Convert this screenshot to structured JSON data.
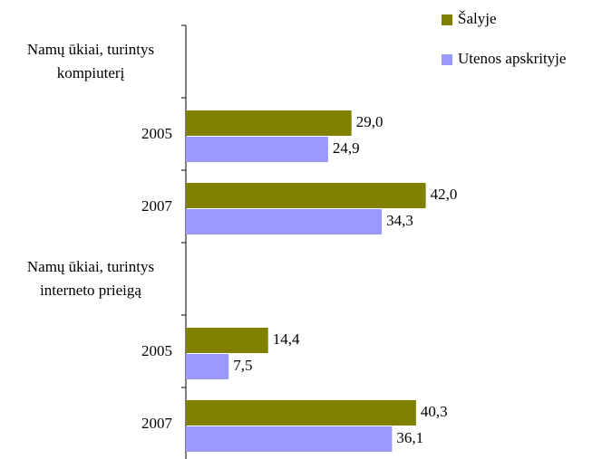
{
  "chart_data": {
    "type": "hbar",
    "categories": [
      "Namų ūkiai, turintys kompiuterį",
      "2005",
      "2007",
      "Namų ūkiai, turintys interneto prieigą",
      "2005",
      "2007"
    ],
    "series": [
      {
        "name": "Šalyje",
        "color": "#808000",
        "values": [
          null,
          29.0,
          42.0,
          null,
          14.4,
          40.3
        ],
        "value_labels": [
          null,
          "29,0",
          "42,0",
          null,
          "14,4",
          "40,3"
        ]
      },
      {
        "name": "Utenos apskrityje",
        "color": "#9999ff",
        "values": [
          null,
          24.9,
          34.3,
          null,
          7.5,
          36.1
        ],
        "value_labels": [
          null,
          "24,9",
          "34,3",
          null,
          "7,5",
          "36,1"
        ]
      }
    ],
    "xlim": [
      0,
      50
    ],
    "legend": "top-right"
  }
}
